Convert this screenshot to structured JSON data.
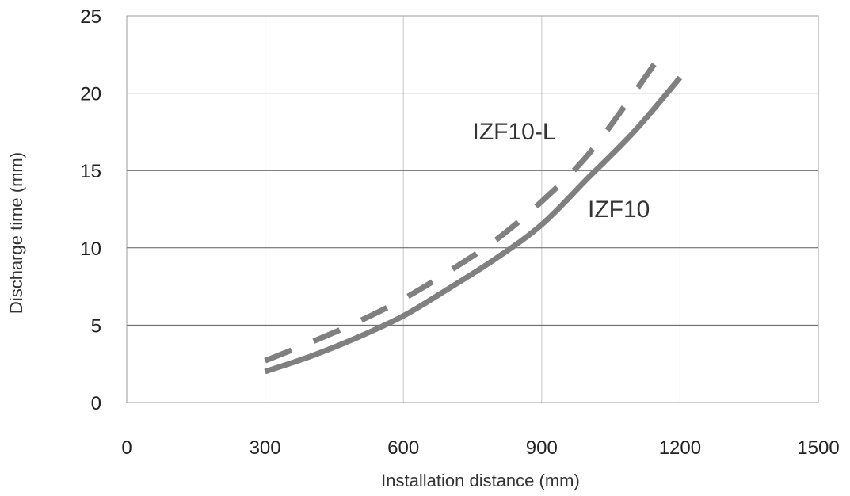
{
  "chart_data": {
    "type": "line",
    "title": "",
    "xlabel": "Installation distance (mm)",
    "ylabel": "Discharge time  (mm)",
    "xlim": [
      0,
      1500
    ],
    "ylim": [
      0,
      25
    ],
    "xticks": [
      0,
      300,
      600,
      900,
      1200,
      1500
    ],
    "yticks": [
      0,
      5,
      10,
      15,
      20,
      25
    ],
    "xtick_labels": [
      "0",
      "300",
      "600",
      "900",
      "1200",
      "1500"
    ],
    "ytick_labels": [
      "0",
      "5",
      "10",
      "15",
      "20",
      "25"
    ],
    "grid": true,
    "series": [
      {
        "name": "IZF10",
        "style": "solid",
        "color": "#808080",
        "label_anchor": [
          1000,
          12
        ],
        "x": [
          300,
          400,
          500,
          600,
          700,
          800,
          900,
          1000,
          1100,
          1200
        ],
        "y": [
          2.0,
          3.0,
          4.2,
          5.6,
          7.4,
          9.3,
          11.5,
          14.5,
          17.5,
          21.0
        ]
      },
      {
        "name": "IZF10-L",
        "style": "dashed",
        "color": "#808080",
        "label_anchor": [
          750,
          17
        ],
        "x": [
          300,
          400,
          500,
          600,
          700,
          800,
          900,
          1000,
          1100,
          1170
        ],
        "y": [
          2.7,
          3.9,
          5.2,
          6.7,
          8.5,
          10.5,
          13.0,
          16.0,
          20.0,
          23.0
        ]
      }
    ]
  }
}
